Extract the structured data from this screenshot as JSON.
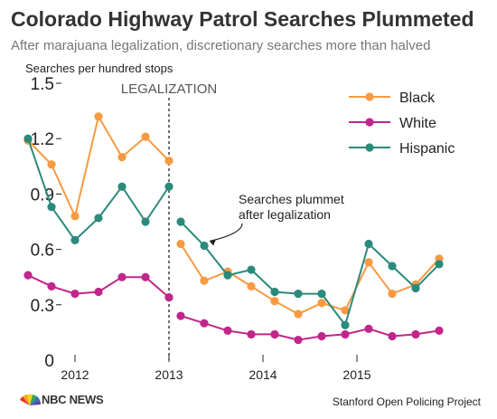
{
  "chart_data": {
    "type": "line",
    "title": "Colorado Highway Patrol Searches Plummeted",
    "subtitle": "After marajuana legalization, discretionary searches more than halved",
    "ylabel": "Searches per hundred stops",
    "ylim": [
      0,
      1.5
    ],
    "yticks": [
      "0",
      "0.3",
      "0.6",
      "0.9",
      "1.2",
      "1.5"
    ],
    "xticks": [
      {
        "label": "2012",
        "x": 2012.0
      },
      {
        "label": "2013",
        "x": 2013.0
      },
      {
        "label": "2014",
        "x": 2014.0
      },
      {
        "label": "2015",
        "x": 2015.0
      }
    ],
    "xlim": [
      2011.375,
      2016.125
    ],
    "legalization": {
      "label": "LEGALIZATION",
      "x": 2013.0
    },
    "legend_position": "top-right",
    "grid": false,
    "series": [
      {
        "name": "Black",
        "color": "#f79a41",
        "segments": [
          {
            "x": [
              2011.5,
              2011.75,
              2012.0,
              2012.25,
              2012.5,
              2012.75,
              2013.0
            ],
            "y": [
              1.19,
              1.06,
              0.78,
              1.32,
              1.1,
              1.21,
              1.08
            ]
          },
          {
            "x": [
              2013.125,
              2013.375,
              2013.625,
              2013.875,
              2014.125,
              2014.375,
              2014.625,
              2014.875,
              2015.125,
              2015.375,
              2015.625,
              2015.875
            ],
            "y": [
              0.63,
              0.43,
              0.48,
              0.4,
              0.32,
              0.25,
              0.31,
              0.27,
              0.53,
              0.36,
              0.41,
              0.55
            ]
          }
        ]
      },
      {
        "name": "White",
        "color": "#c1268b",
        "segments": [
          {
            "x": [
              2011.5,
              2011.75,
              2012.0,
              2012.25,
              2012.5,
              2012.75,
              2013.0
            ],
            "y": [
              0.46,
              0.4,
              0.36,
              0.37,
              0.45,
              0.45,
              0.34
            ]
          },
          {
            "x": [
              2013.125,
              2013.375,
              2013.625,
              2013.875,
              2014.125,
              2014.375,
              2014.625,
              2014.875,
              2015.125,
              2015.375,
              2015.625,
              2015.875
            ],
            "y": [
              0.24,
              0.2,
              0.16,
              0.14,
              0.14,
              0.11,
              0.13,
              0.14,
              0.17,
              0.13,
              0.14,
              0.16
            ]
          }
        ]
      },
      {
        "name": "Hispanic",
        "color": "#2a8a7c",
        "segments": [
          {
            "x": [
              2011.5,
              2011.75,
              2012.0,
              2012.25,
              2012.5,
              2012.75,
              2013.0
            ],
            "y": [
              1.2,
              0.83,
              0.65,
              0.77,
              0.94,
              0.75,
              0.94
            ]
          },
          {
            "x": [
              2013.125,
              2013.375,
              2013.625,
              2013.875,
              2014.125,
              2014.375,
              2014.625,
              2014.875,
              2015.125,
              2015.375,
              2015.625,
              2015.875
            ],
            "y": [
              0.75,
              0.62,
              0.46,
              0.49,
              0.37,
              0.36,
              0.36,
              0.19,
              0.63,
              0.51,
              0.39,
              0.52
            ]
          }
        ]
      }
    ],
    "annotation": {
      "lines": [
        "Searches plummet",
        "after legalization"
      ],
      "target_x": 2013.375,
      "target_y": 0.62
    }
  },
  "footer": {
    "brand": "NBC NEWS",
    "source": "Stanford Open Policing Project"
  }
}
